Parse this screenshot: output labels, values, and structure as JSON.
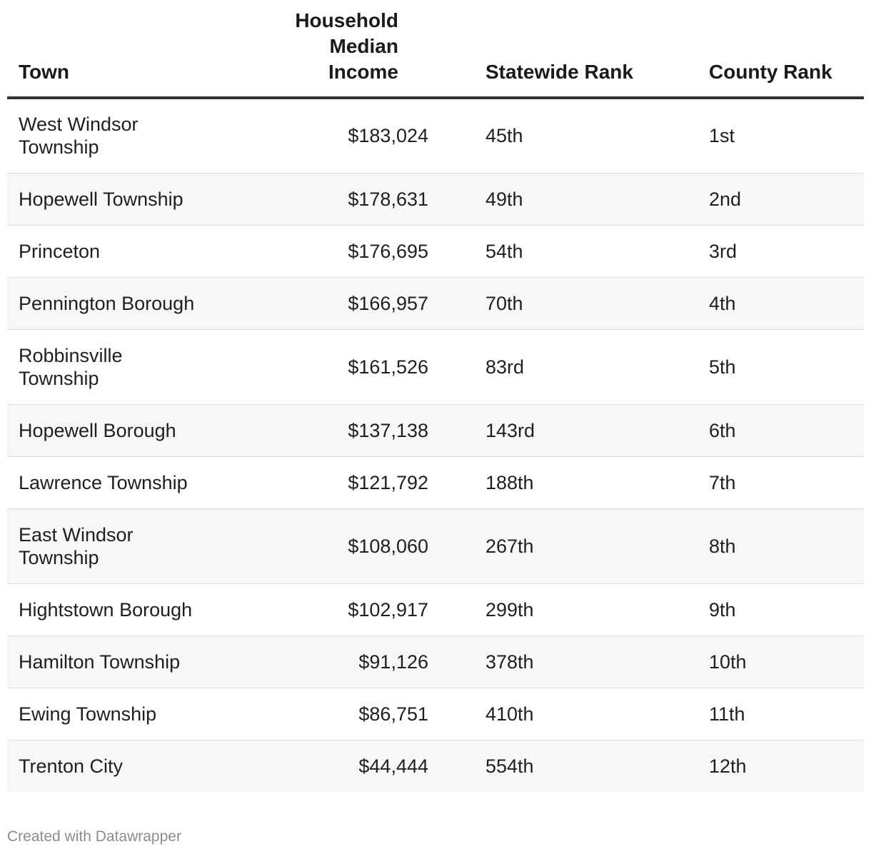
{
  "chart_data": {
    "type": "table",
    "columns": [
      "Town",
      "Household Median Income",
      "Statewide Rank",
      "County Rank"
    ],
    "rows": [
      {
        "town": "West Windsor Township",
        "income": "$183,024",
        "statewide_rank": "45th",
        "county_rank": "1st"
      },
      {
        "town": "Hopewell Township",
        "income": "$178,631",
        "statewide_rank": "49th",
        "county_rank": "2nd"
      },
      {
        "town": "Princeton",
        "income": "$176,695",
        "statewide_rank": "54th",
        "county_rank": "3rd"
      },
      {
        "town": "Pennington Borough",
        "income": "$166,957",
        "statewide_rank": "70th",
        "county_rank": "4th"
      },
      {
        "town": "Robbinsville Township",
        "income": "$161,526",
        "statewide_rank": "83rd",
        "county_rank": "5th"
      },
      {
        "town": "Hopewell Borough",
        "income": "$137,138",
        "statewide_rank": "143rd",
        "county_rank": "6th"
      },
      {
        "town": "Lawrence Township",
        "income": "$121,792",
        "statewide_rank": "188th",
        "county_rank": "7th"
      },
      {
        "town": "East Windsor Township",
        "income": "$108,060",
        "statewide_rank": "267th",
        "county_rank": "8th"
      },
      {
        "town": "Hightstown Borough",
        "income": "$102,917",
        "statewide_rank": "299th",
        "county_rank": "9th"
      },
      {
        "town": "Hamilton Township",
        "income": "$91,126",
        "statewide_rank": "378th",
        "county_rank": "10th"
      },
      {
        "town": "Ewing Township",
        "income": "$86,751",
        "statewide_rank": "410th",
        "county_rank": "11th"
      },
      {
        "town": "Trenton City",
        "income": "$44,444",
        "statewide_rank": "554th",
        "county_rank": "12th"
      }
    ]
  },
  "footer": {
    "credit": "Created with Datawrapper"
  },
  "colors": {
    "header_rule": "#333333",
    "row_alt": "#f7f7f7",
    "row_divider": "#dcdcdc",
    "credit_text": "#8c8c8c"
  }
}
